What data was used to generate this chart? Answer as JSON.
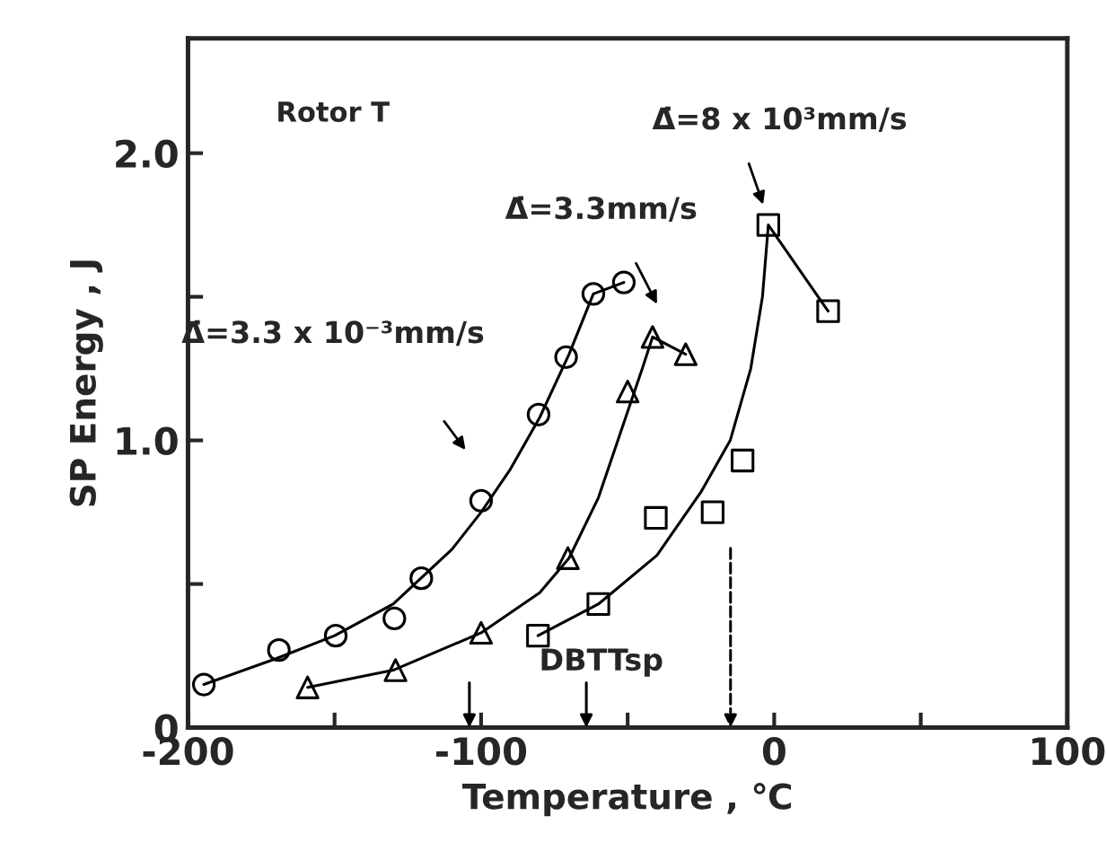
{
  "chart_data": {
    "type": "scatter",
    "xlabel": "Temperature , ℃",
    "ylabel": "SP Energy , J",
    "xlim": [
      -200,
      100
    ],
    "ylim": [
      0,
      2.4
    ],
    "xticks": [
      -200,
      {
        "value": -150,
        "label": null
      },
      -100,
      {
        "value": -50,
        "label": null
      },
      0,
      {
        "value": 50,
        "label": null
      },
      100
    ],
    "yticks": [
      {
        "value": 0,
        "label": "0"
      },
      {
        "value": 0.5,
        "label": null
      },
      {
        "value": 1.0,
        "label": "1.0"
      },
      {
        "value": 1.5,
        "label": null
      },
      {
        "value": 2.0,
        "label": "2.0"
      }
    ],
    "grid": false,
    "legend": false,
    "series": [
      {
        "marker": "circle",
        "color": "#000000",
        "x": [
          -194.6,
          -169,
          -149.6,
          -129.6,
          -120.4,
          -100,
          -80.4,
          -71,
          -61.7,
          -51.3
        ],
        "values": [
          0.15,
          0.27,
          0.32,
          0.38,
          0.52,
          0.79,
          1.09,
          1.29,
          1.51,
          1.55
        ]
      },
      {
        "marker": "triangle",
        "color": "#000000",
        "x": [
          -159.2,
          -129.2,
          -100,
          -70.4,
          -50,
          -41.5,
          -30.2
        ],
        "values": [
          0.14,
          0.2,
          0.33,
          0.59,
          1.17,
          1.36,
          1.3
        ]
      },
      {
        "marker": "square",
        "color": "#000000",
        "x": [
          -80.6,
          -60,
          -40.4,
          -21,
          -10.8,
          -2,
          18.4
        ],
        "values": [
          0.32,
          0.43,
          0.73,
          0.75,
          0.93,
          1.75,
          1.45
        ]
      },
      {
        "type": "line",
        "color": "#000000",
        "x": [
          -194.6,
          -170,
          -150,
          -130,
          -110,
          -100,
          -90,
          -80,
          -70,
          -61.7,
          -51.3
        ],
        "values": [
          0.15,
          0.24,
          0.32,
          0.43,
          0.62,
          0.75,
          0.9,
          1.08,
          1.3,
          1.51,
          1.55
        ]
      },
      {
        "type": "line",
        "color": "#000000",
        "x": [
          -159.2,
          -130,
          -100,
          -80,
          -70,
          -60,
          -50,
          -45,
          -41.5,
          -30.2
        ],
        "values": [
          0.14,
          0.2,
          0.33,
          0.47,
          0.59,
          0.8,
          1.1,
          1.25,
          1.36,
          1.3
        ]
      },
      {
        "type": "line",
        "color": "#000000",
        "x": [
          -80.6,
          -60,
          -40,
          -25,
          -15,
          -8,
          -4,
          -2,
          18.4
        ],
        "values": [
          0.32,
          0.43,
          0.6,
          0.82,
          1.0,
          1.25,
          1.5,
          1.75,
          1.45
        ]
      }
    ],
    "annotations": [
      "Rotor T",
      "Δ̇=3.3 x 10⁻³mm/s",
      "Δ̇=3.3mm/s",
      "Δ̇=8 x 10³mm/s",
      "DBTTsp"
    ]
  }
}
